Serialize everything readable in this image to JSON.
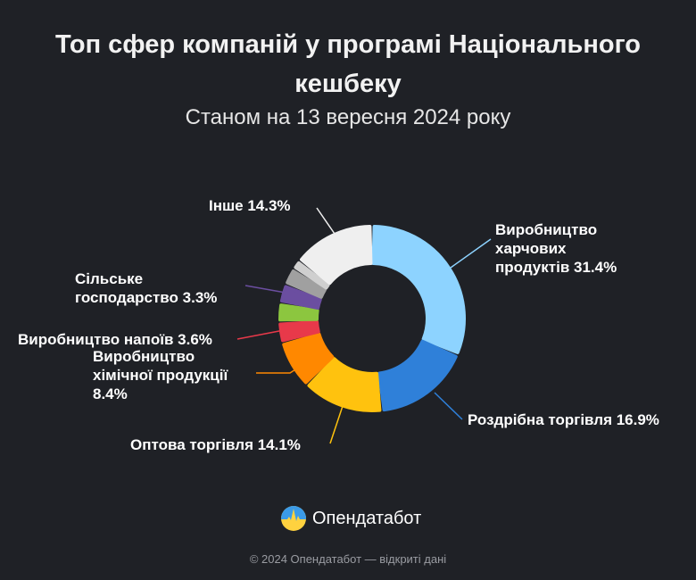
{
  "chart_data": {
    "type": "pie",
    "donut": true,
    "title": "Топ сфер компаній у програмі Національного кешбеку",
    "subtitle": "Станом на 13 вересня 2024 року",
    "slices": [
      {
        "label": "Виробництво харчових продуктів 31.4%",
        "value": 31.4,
        "color": "#8dd3ff"
      },
      {
        "label": "Роздрібна торгівля 16.9%",
        "value": 16.9,
        "color": "#2f80d9"
      },
      {
        "label": "Оптова торгівля 14.1%",
        "value": 14.1,
        "color": "#ffc20e"
      },
      {
        "label": "Виробництво хімічної продукції 8.4%",
        "value": 8.4,
        "color": "#ff8800"
      },
      {
        "label": "Виробництво напоїв 3.6%",
        "value": 3.6,
        "color": "#e8394a"
      },
      {
        "label": "",
        "value": 3.3,
        "color": "#8cc63f"
      },
      {
        "label": "Сільське господарство 3.3%",
        "value": 3.3,
        "color": "#6b4ea0"
      },
      {
        "label": "",
        "value": 3.0,
        "color": "#a0a0a0"
      },
      {
        "label": "",
        "value": 1.7,
        "color": "#cfcfcf"
      },
      {
        "label": "Інше 14.3%",
        "value": 14.3,
        "color": "#efefef"
      }
    ]
  },
  "labels": {
    "food_1": "Виробництво",
    "food_2": "харчових",
    "food_3": "продуктів 31.4%",
    "retail": "Роздрібна торгівля 16.9%",
    "wholesale": "Оптова торгівля 14.1%",
    "chem_1": "Виробництво",
    "chem_2": "хімічної продукції",
    "chem_3": "8.4%",
    "drinks": "Виробництво напоїв 3.6%",
    "agri_1": "Сільське",
    "agri_2": "господарство 3.3%",
    "other": "Інше 14.3%"
  },
  "brand": {
    "name": "Опендатабот"
  },
  "footer": "© 2024 Опендатабот — відкриті дані"
}
